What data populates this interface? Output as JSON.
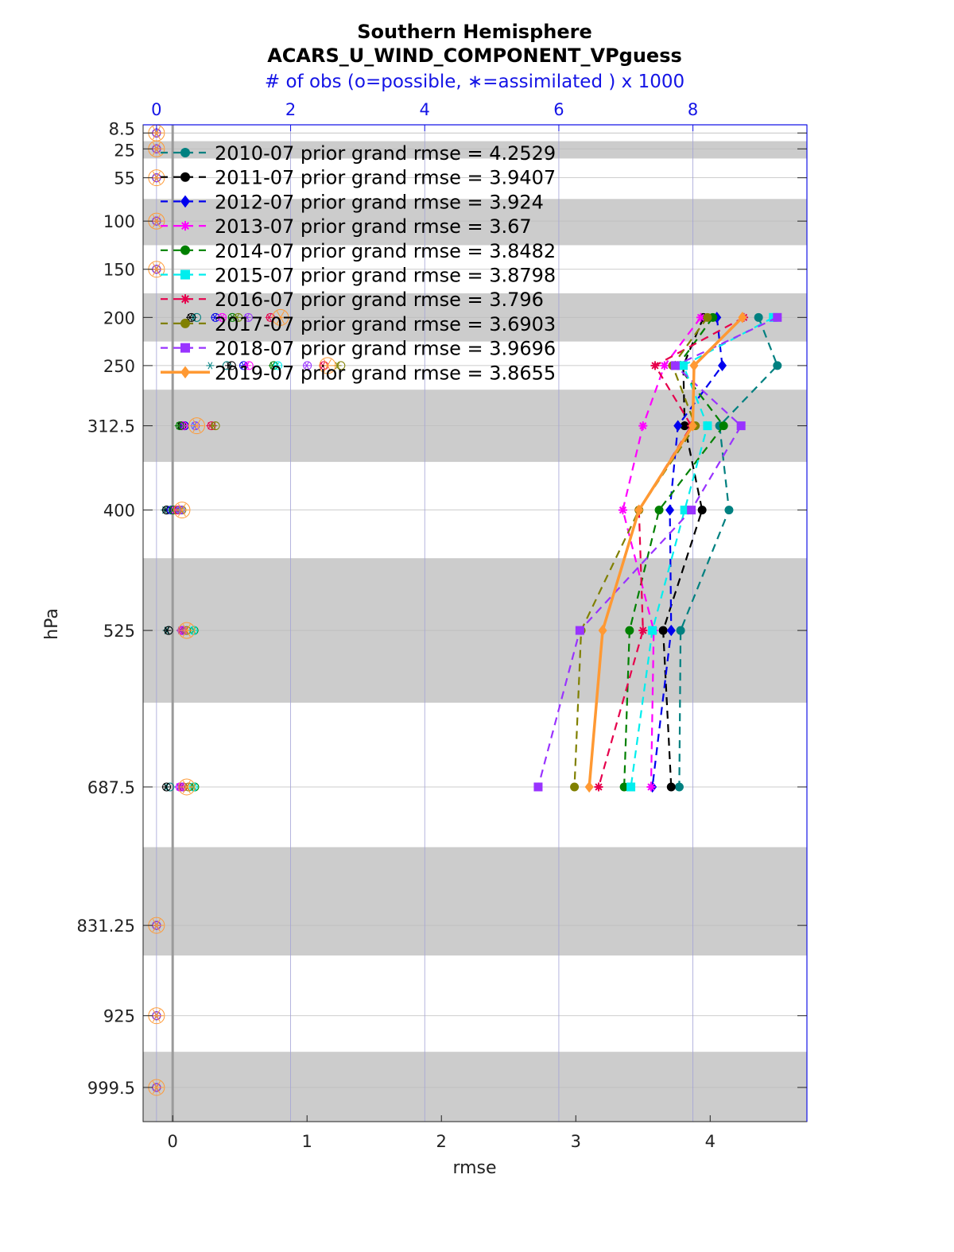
{
  "chart_data": {
    "type": "line",
    "title": "Southern Hemisphere",
    "subtitle": "ACARS_U_WIND_COMPONENT_VPguess",
    "top_axis_label": "# of obs (o=possible, ∗=assimilated ) x 1000",
    "xlabel": "rmse",
    "ylabel": "hPa",
    "xlim": [
      -0.22,
      4.72
    ],
    "top_xlim": [
      -0.2,
      9.7
    ],
    "x_ticks": [
      "0",
      "1",
      "2",
      "3",
      "4"
    ],
    "x_tick_values": [
      0,
      1,
      2,
      3,
      4
    ],
    "top_ticks": [
      "0",
      "2",
      "4",
      "6",
      "8"
    ],
    "top_tick_values": [
      0,
      2,
      4,
      6,
      8
    ],
    "y_tick_labels": [
      "8.5",
      "25",
      "55",
      "100",
      "150",
      "200",
      "250",
      "312.5",
      "400",
      "525",
      "687.5",
      "831.25",
      "925",
      "999.5"
    ],
    "y_tick_values": [
      8.5,
      25,
      55,
      100,
      150,
      200,
      250,
      312.5,
      400,
      525,
      687.5,
      831.25,
      925,
      999.5
    ],
    "ylim_hpa": [
      0,
      1035
    ],
    "shaded_bands_hpa": [
      [
        17,
        35
      ],
      [
        77,
        125
      ],
      [
        175,
        225
      ],
      [
        275,
        350
      ],
      [
        450,
        600
      ],
      [
        750,
        862.5
      ],
      [
        962.5,
        1037
      ]
    ],
    "grid": true,
    "legend_location": "top-left",
    "rmse_levels_hpa": [
      200,
      250,
      312.5,
      400,
      525,
      687.5
    ],
    "obs_levels_hpa": [
      8.5,
      25,
      55,
      100,
      150,
      200,
      250,
      312.5,
      400,
      525,
      687.5,
      831.25,
      925,
      999.5
    ],
    "series": [
      {
        "name": "2010-07",
        "label": "2010-07 prior grand rmse = 4.2529",
        "color": "#008080",
        "marker": "circle",
        "style": "dashed",
        "rmse": [
          4.36,
          4.5,
          4.07,
          4.14,
          3.78,
          3.77
        ],
        "obs_possible": [
          0,
          0,
          0,
          0,
          0,
          0.6,
          1.05,
          0.42,
          0.15,
          0.18,
          0.2,
          0,
          0,
          0
        ],
        "obs_assimilated": [
          0,
          0,
          0,
          0,
          0,
          0.55,
          0.8,
          0.38,
          0.12,
          0.15,
          0.15,
          0,
          0,
          0
        ]
      },
      {
        "name": "2011-07",
        "label": "2011-07 prior grand rmse = 3.9407",
        "color": "#000000",
        "marker": "circle",
        "style": "dashed",
        "rmse": [
          3.95,
          3.8,
          3.81,
          3.94,
          3.65,
          3.71
        ],
        "obs_possible": [
          0,
          0,
          0,
          0,
          0,
          0.52,
          1.12,
          0.38,
          0.15,
          0.18,
          0.15,
          0,
          0,
          0
        ],
        "obs_assimilated": [
          0,
          0,
          0,
          0,
          0,
          0.5,
          1.08,
          0.35,
          0.14,
          0.16,
          0.14,
          0,
          0,
          0
        ]
      },
      {
        "name": "2012-07",
        "label": "2012-07 prior grand rmse = 3.924",
        "color": "#0000ee",
        "marker": "diamond",
        "style": "dashed",
        "rmse": [
          4.05,
          4.09,
          3.76,
          3.7,
          3.71,
          3.57
        ],
        "obs_possible": [
          0,
          0,
          0,
          0,
          0,
          0.88,
          1.3,
          0.42,
          0.22,
          0.38,
          0.35,
          0,
          0,
          0
        ],
        "obs_assimilated": [
          0,
          0,
          0,
          0,
          0,
          0.87,
          1.3,
          0.4,
          0.2,
          0.36,
          0.33,
          0,
          0,
          0
        ]
      },
      {
        "name": "2013-07",
        "label": "2013-07 prior grand rmse = 3.67",
        "color": "#ff00ff",
        "marker": "star",
        "style": "dashed",
        "rmse": [
          3.93,
          3.66,
          3.5,
          3.35,
          3.58,
          3.56
        ],
        "obs_possible": [
          0,
          0,
          0,
          0,
          0,
          0.98,
          1.38,
          0.4,
          0.28,
          0.4,
          0.35,
          0,
          0,
          0
        ],
        "obs_assimilated": [
          0,
          0,
          0,
          0,
          0,
          0.98,
          1.35,
          0.4,
          0.27,
          0.4,
          0.35,
          0,
          0,
          0
        ]
      },
      {
        "name": "2014-07",
        "label": "2014-07 prior grand rmse = 3.8482",
        "color": "#008000",
        "marker": "circle",
        "style": "dashed",
        "rmse": [
          4.02,
          3.76,
          4.1,
          3.62,
          3.4,
          3.36
        ],
        "obs_possible": [
          0,
          0,
          0,
          0,
          0,
          1.13,
          1.75,
          0.35,
          0.25,
          0.56,
          0.57,
          0,
          0,
          0
        ],
        "obs_assimilated": [
          0,
          0,
          0,
          0,
          0,
          1.13,
          1.73,
          0.33,
          0.24,
          0.55,
          0.56,
          0,
          0,
          0
        ]
      },
      {
        "name": "2015-07",
        "label": "2015-07 prior grand rmse = 3.8798",
        "color": "#00eeee",
        "marker": "square",
        "style": "dashed",
        "rmse": [
          4.47,
          3.8,
          3.98,
          3.81,
          3.57,
          3.41
        ],
        "obs_possible": [
          0,
          0,
          0,
          0,
          0,
          1.22,
          1.81,
          0.58,
          0.35,
          0.55,
          0.55,
          0,
          0,
          0
        ],
        "obs_assimilated": [
          0,
          0,
          0,
          0,
          0,
          1.2,
          1.8,
          0.56,
          0.34,
          0.54,
          0.54,
          0,
          0,
          0
        ]
      },
      {
        "name": "2016-07",
        "label": "2016-07 prior grand rmse = 3.796",
        "color": "#e6004c",
        "marker": "star",
        "style": "dashed",
        "rmse": [
          4.25,
          3.59,
          3.86,
          3.47,
          3.5,
          3.17
        ],
        "obs_possible": [
          0,
          0,
          0,
          0,
          0,
          1.7,
          2.5,
          0.82,
          0.32,
          0.38,
          0.4,
          0,
          0,
          0
        ],
        "obs_assimilated": [
          0,
          0,
          0,
          0,
          0,
          1.68,
          2.48,
          0.8,
          0.3,
          0.36,
          0.38,
          0,
          0,
          0
        ]
      },
      {
        "name": "2017-07",
        "label": "2017-07 prior grand rmse = 3.6903",
        "color": "#808000",
        "marker": "circle",
        "style": "dashed",
        "rmse": [
          3.98,
          3.72,
          3.89,
          3.47,
          3.04,
          2.99
        ],
        "obs_possible": [
          0,
          0,
          0,
          0,
          0,
          1.22,
          2.75,
          0.88,
          0.38,
          0.45,
          0.48,
          0,
          0,
          0
        ],
        "obs_assimilated": [
          0,
          0,
          0,
          0,
          0,
          1.2,
          2.7,
          0.85,
          0.37,
          0.44,
          0.46,
          0,
          0,
          0
        ]
      },
      {
        "name": "2018-07",
        "label": "2018-07 prior grand rmse = 3.9696",
        "color": "#9933ff",
        "marker": "square",
        "style": "dashed",
        "rmse": [
          4.5,
          3.74,
          4.23,
          3.86,
          3.03,
          2.72
        ],
        "obs_possible": [
          0,
          0,
          0,
          0,
          0,
          1.37,
          2.25,
          0.58,
          0.36,
          0.38,
          0.38,
          0,
          0,
          0
        ],
        "obs_assimilated": [
          0,
          0,
          0,
          0,
          0,
          1.35,
          2.24,
          0.57,
          0.35,
          0.37,
          0.37,
          0,
          0,
          0
        ]
      },
      {
        "name": "2019-07",
        "label": "2019-07 prior grand rmse = 3.8655",
        "color": "#ff9933",
        "marker": "diamond",
        "style": "solid",
        "rmse": [
          4.24,
          3.88,
          3.87,
          3.47,
          3.2,
          3.1
        ],
        "obs_possible": [
          0,
          0,
          0,
          0,
          0,
          1.85,
          2.55,
          0.6,
          0.38,
          0.45,
          0.45,
          0,
          0,
          0
        ],
        "obs_assimilated": [
          0,
          0,
          0,
          0,
          0,
          1.85,
          2.55,
          0.6,
          0.38,
          0.45,
          0.45,
          0,
          0,
          0
        ]
      }
    ]
  }
}
